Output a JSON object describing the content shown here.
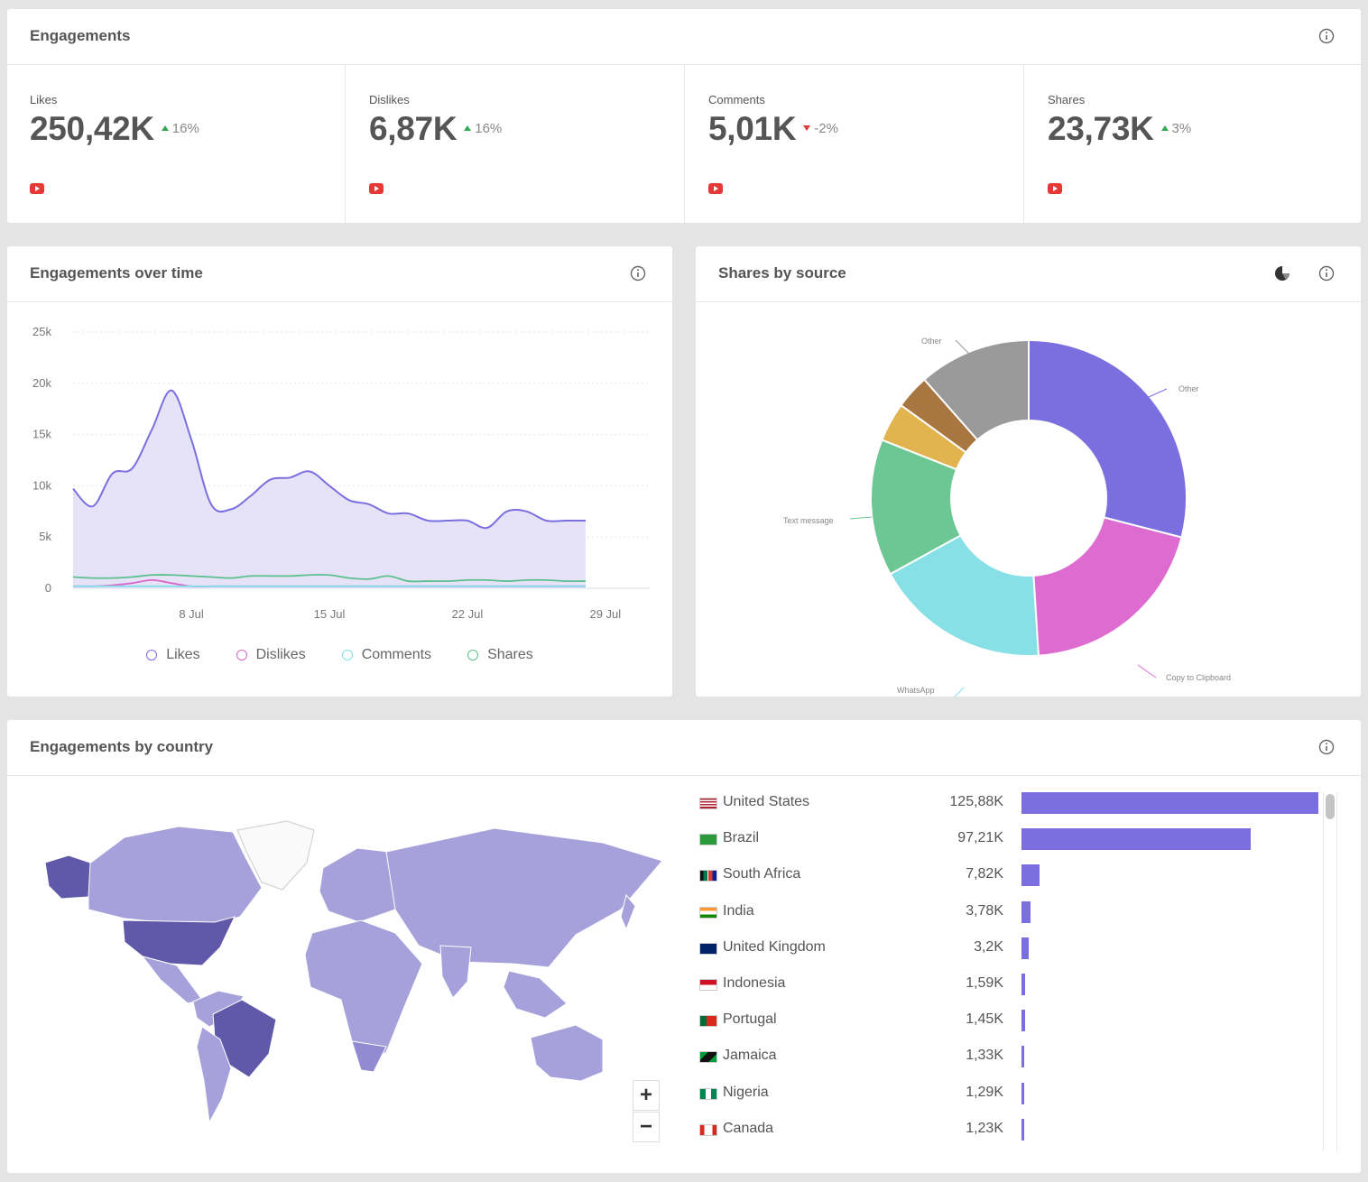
{
  "engagements": {
    "title": "Engagements",
    "metrics": [
      {
        "label": "Likes",
        "value": "250,42K",
        "delta": "16%",
        "direction": "up"
      },
      {
        "label": "Dislikes",
        "value": "6,87K",
        "delta": "16%",
        "direction": "up"
      },
      {
        "label": "Comments",
        "value": "5,01K",
        "delta": "-2%",
        "direction": "down"
      },
      {
        "label": "Shares",
        "value": "23,73K",
        "delta": "3%",
        "direction": "up"
      }
    ]
  },
  "over_time": {
    "title": "Engagements over time",
    "legend": [
      {
        "name": "Likes",
        "color": "#7b6fe0"
      },
      {
        "name": "Dislikes",
        "color": "#d966c8"
      },
      {
        "name": "Comments",
        "color": "#7fdfe6"
      },
      {
        "name": "Shares",
        "color": "#5cc08d"
      }
    ]
  },
  "shares_by_source": {
    "title": "Shares by source",
    "labels": {
      "other_top": "Other",
      "other_right": "Other",
      "text_message": "Text message",
      "copy_to_clipboard": "Copy to Clipboard",
      "whatsapp": "WhatsApp"
    }
  },
  "by_country": {
    "title": "Engagements by country",
    "zoom_in": "+",
    "zoom_out": "−",
    "rows": [
      {
        "country": "United States",
        "value": "125,88K",
        "num": 125.88
      },
      {
        "country": "Brazil",
        "value": "97,21K",
        "num": 97.21
      },
      {
        "country": "South Africa",
        "value": "7,82K",
        "num": 7.82
      },
      {
        "country": "India",
        "value": "3,78K",
        "num": 3.78
      },
      {
        "country": "United Kingdom",
        "value": "3,2K",
        "num": 3.2
      },
      {
        "country": "Indonesia",
        "value": "1,59K",
        "num": 1.59
      },
      {
        "country": "Portugal",
        "value": "1,45K",
        "num": 1.45
      },
      {
        "country": "Jamaica",
        "value": "1,33K",
        "num": 1.33
      },
      {
        "country": "Nigeria",
        "value": "1,29K",
        "num": 1.29
      },
      {
        "country": "Canada",
        "value": "1,23K",
        "num": 1.23
      }
    ]
  },
  "chart_data": [
    {
      "type": "area",
      "title": "",
      "xlabel": "",
      "ylabel": "",
      "x_ticks": [
        "8 Jul",
        "15 Jul",
        "22 Jul",
        "29 Jul"
      ],
      "y_ticks": [
        "0",
        "5k",
        "10k",
        "15k",
        "20k",
        "25k"
      ],
      "ylim": [
        0,
        25000
      ],
      "x": [
        "2 Jul",
        "3 Jul",
        "4 Jul",
        "5 Jul",
        "6 Jul",
        "7 Jul",
        "8 Jul",
        "9 Jul",
        "10 Jul",
        "11 Jul",
        "12 Jul",
        "13 Jul",
        "14 Jul",
        "15 Jul",
        "16 Jul",
        "17 Jul",
        "18 Jul",
        "19 Jul",
        "20 Jul",
        "21 Jul",
        "22 Jul",
        "23 Jul",
        "24 Jul",
        "25 Jul",
        "26 Jul",
        "27 Jul",
        "28 Jul"
      ],
      "series": [
        {
          "name": "Likes",
          "values": [
            9700,
            8000,
            11200,
            11700,
            15500,
            19300,
            14500,
            8200,
            7700,
            9000,
            10600,
            10800,
            11400,
            10000,
            8600,
            8200,
            7300,
            7300,
            6600,
            6600,
            6600,
            5900,
            7500,
            7500,
            6600,
            6600,
            6600
          ]
        },
        {
          "name": "Dislikes",
          "values": [
            200,
            200,
            300,
            500,
            800,
            500,
            200,
            200,
            200,
            200,
            200,
            200,
            200,
            200,
            200,
            200,
            200,
            200,
            200,
            200,
            200,
            200,
            200,
            200,
            200,
            200,
            200
          ]
        },
        {
          "name": "Comments",
          "values": [
            200,
            200,
            200,
            200,
            200,
            200,
            200,
            200,
            200,
            200,
            200,
            200,
            200,
            200,
            200,
            200,
            200,
            200,
            200,
            200,
            200,
            200,
            200,
            200,
            200,
            200,
            200
          ]
        },
        {
          "name": "Shares",
          "values": [
            1100,
            1000,
            1000,
            1100,
            1300,
            1300,
            1200,
            1100,
            1000,
            1200,
            1200,
            1200,
            1300,
            1300,
            1000,
            900,
            1200,
            700,
            700,
            700,
            800,
            800,
            700,
            800,
            800,
            700,
            700
          ]
        }
      ]
    },
    {
      "type": "pie",
      "title": "",
      "slices": [
        {
          "label": "Other",
          "value": 29,
          "color": "#7b6fe0"
        },
        {
          "label": "Copy to Clipboard",
          "value": 20,
          "color": "#de6bd0"
        },
        {
          "label": "WhatsApp",
          "value": 18,
          "color": "#86e0e6"
        },
        {
          "label": "Text message",
          "value": 14,
          "color": "#6cc795"
        },
        {
          "label": "",
          "value": 4,
          "color": "#e2b450"
        },
        {
          "label": "",
          "value": 3.5,
          "color": "#a87641"
        },
        {
          "label": "Other",
          "value": 11.5,
          "color": "#9a9a9a"
        }
      ]
    },
    {
      "type": "bar",
      "title": "",
      "categories": [
        "United States",
        "Brazil",
        "South Africa",
        "India",
        "United Kingdom",
        "Indonesia",
        "Portugal",
        "Jamaica",
        "Nigeria",
        "Canada"
      ],
      "values": [
        125880,
        97210,
        7820,
        3780,
        3200,
        1590,
        1450,
        1330,
        1290,
        1230
      ]
    }
  ]
}
